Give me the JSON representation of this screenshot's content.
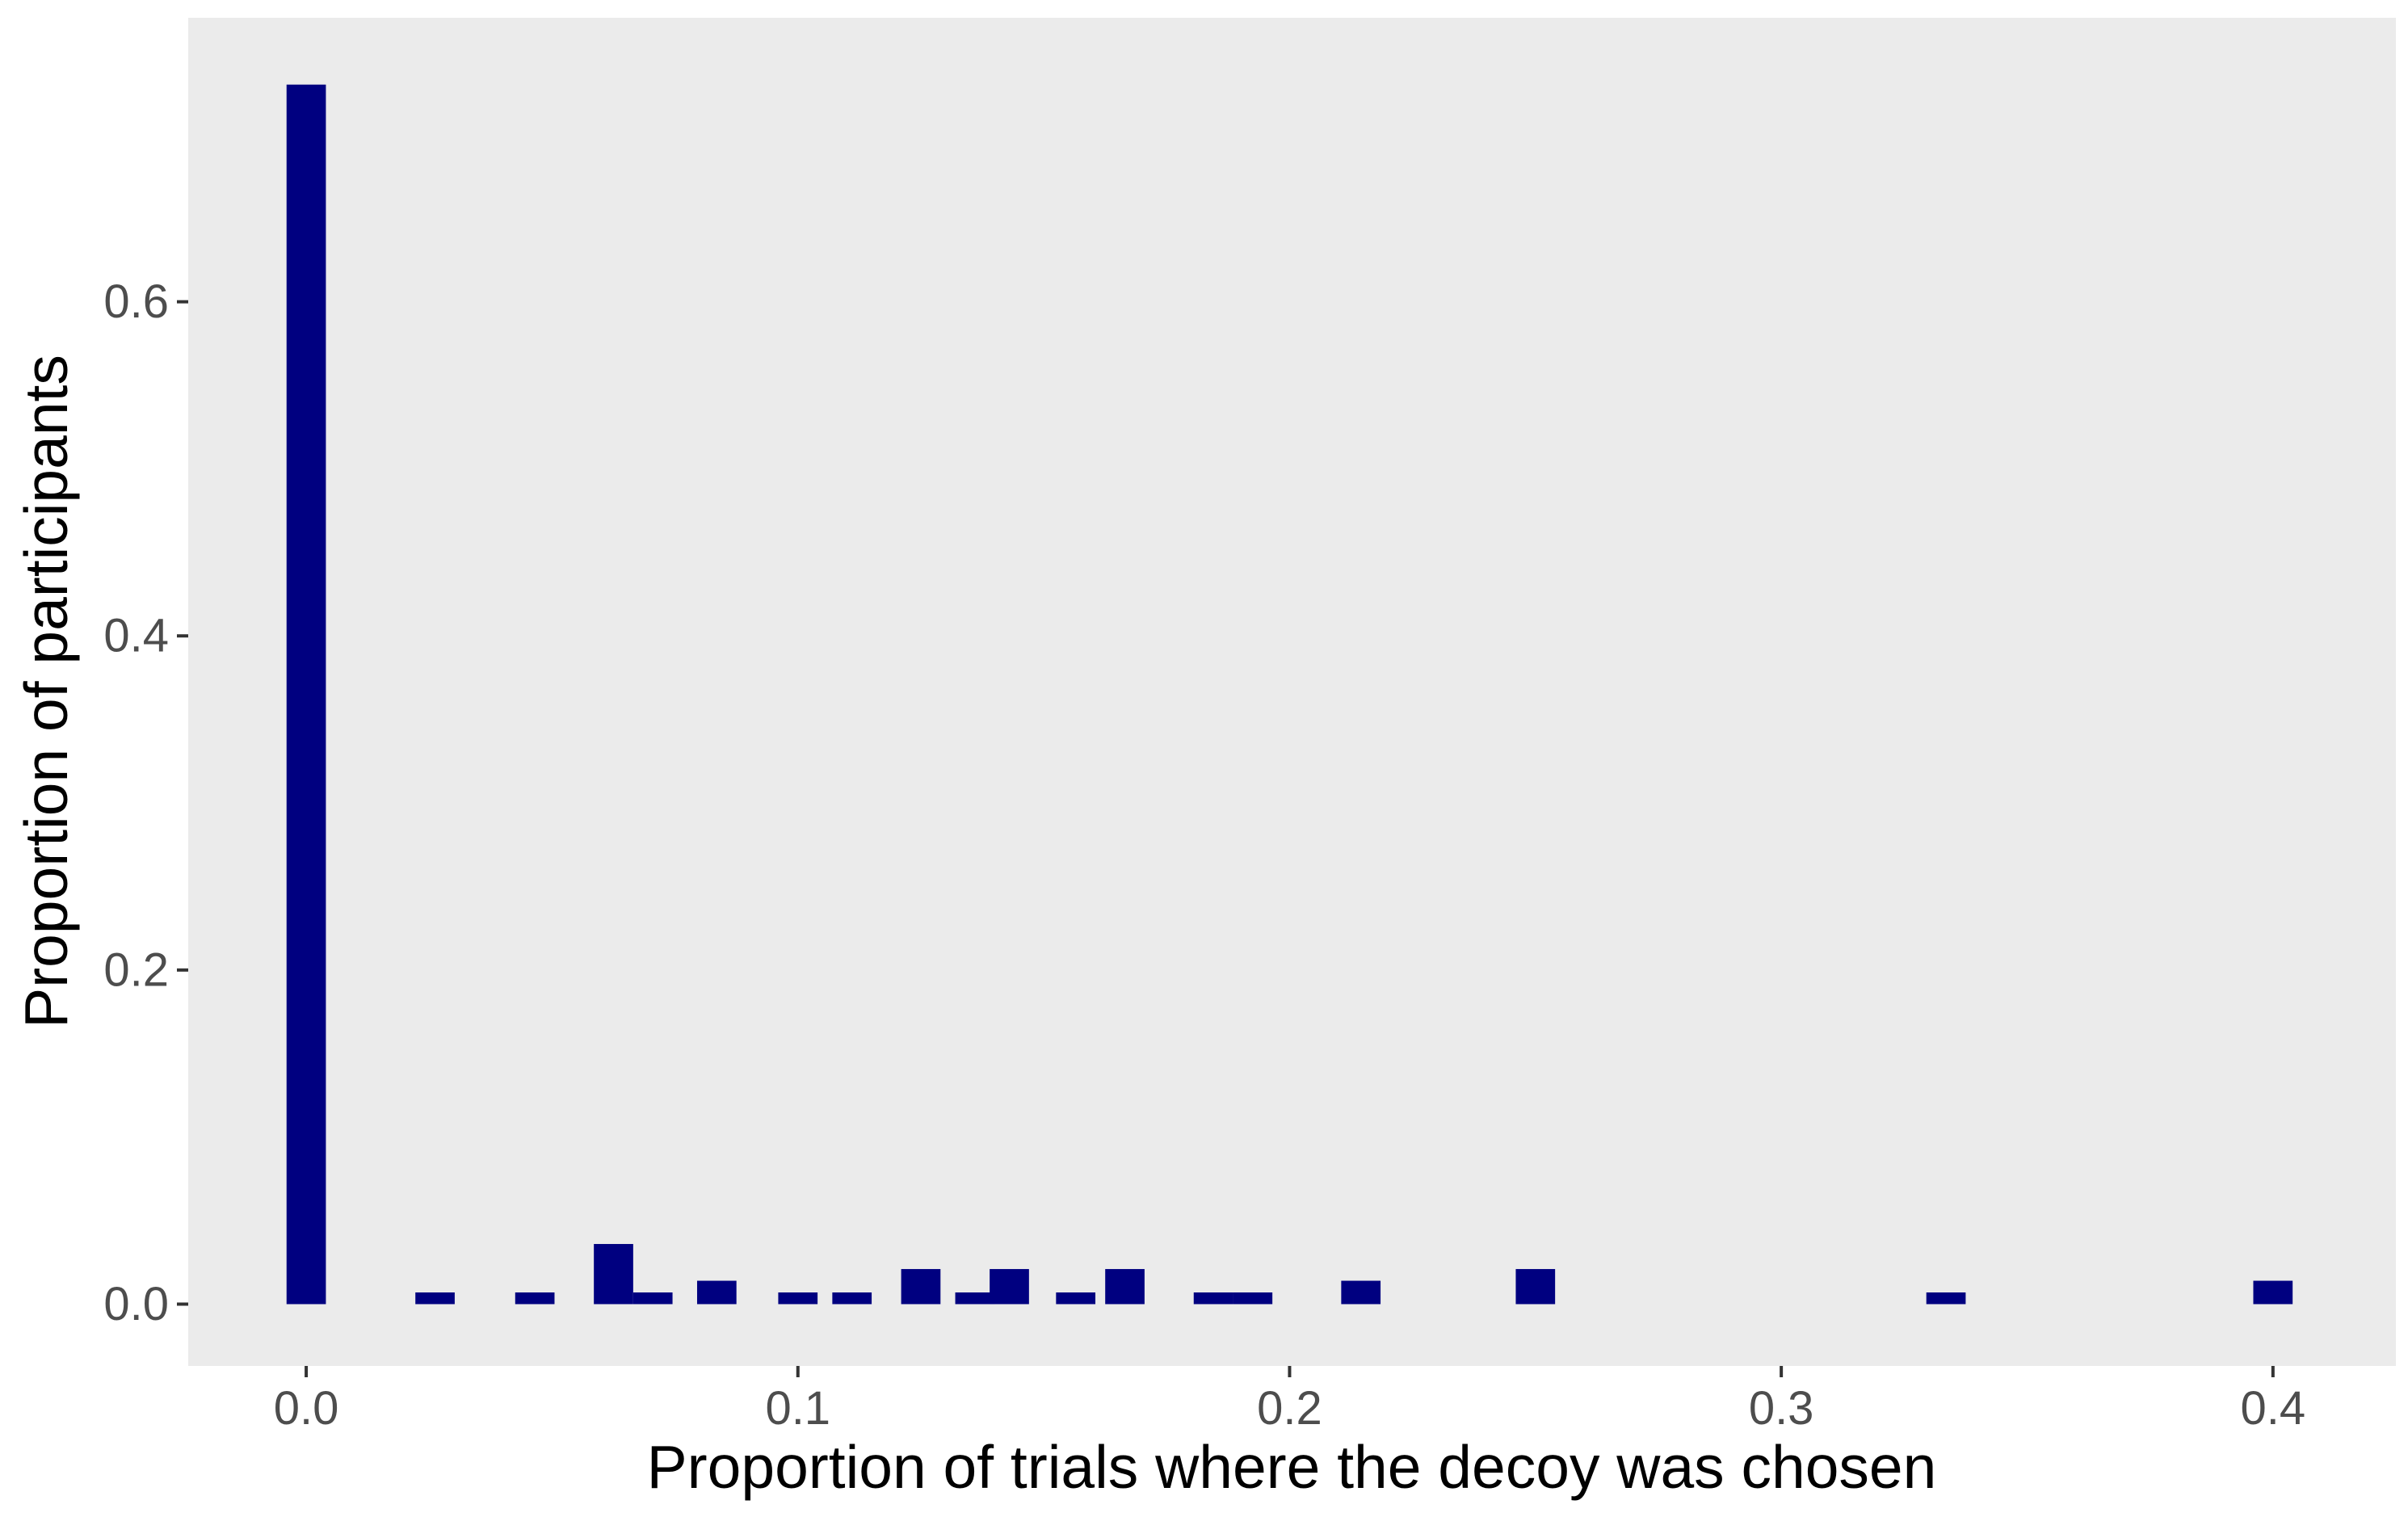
{
  "chart_data": {
    "type": "bar",
    "title": "",
    "xlabel": "Proportion of trials where the decoy was chosen",
    "ylabel": "Proportion of participants",
    "xlim": [
      -0.024,
      0.425
    ],
    "ylim": [
      -0.037,
      0.77
    ],
    "x_ticks": [
      0.0,
      0.1,
      0.2,
      0.3,
      0.4
    ],
    "x_tick_labels": [
      "0.0",
      "0.1",
      "0.2",
      "0.3",
      "0.4"
    ],
    "y_ticks": [
      0.0,
      0.2,
      0.4,
      0.6
    ],
    "y_tick_labels": [
      "0.0",
      "0.2",
      "0.4",
      "0.6"
    ],
    "bin_width": 0.008,
    "grid": false,
    "colors": {
      "panel": "#ebebeb",
      "bar": "#000080",
      "tick": "#4d4d4d"
    },
    "bars": [
      {
        "x": 0.0,
        "value": 0.73
      },
      {
        "x": 0.0262,
        "value": 0.007
      },
      {
        "x": 0.0465,
        "value": 0.007
      },
      {
        "x": 0.0625,
        "value": 0.036
      },
      {
        "x": 0.0705,
        "value": 0.007
      },
      {
        "x": 0.0835,
        "value": 0.014
      },
      {
        "x": 0.1,
        "value": 0.007
      },
      {
        "x": 0.111,
        "value": 0.007
      },
      {
        "x": 0.125,
        "value": 0.021
      },
      {
        "x": 0.136,
        "value": 0.007
      },
      {
        "x": 0.143,
        "value": 0.021
      },
      {
        "x": 0.1565,
        "value": 0.007
      },
      {
        "x": 0.1665,
        "value": 0.021
      },
      {
        "x": 0.1845,
        "value": 0.007
      },
      {
        "x": 0.1925,
        "value": 0.007
      },
      {
        "x": 0.2145,
        "value": 0.014
      },
      {
        "x": 0.25,
        "value": 0.021
      },
      {
        "x": 0.3335,
        "value": 0.007
      },
      {
        "x": 0.4,
        "value": 0.014
      }
    ]
  }
}
